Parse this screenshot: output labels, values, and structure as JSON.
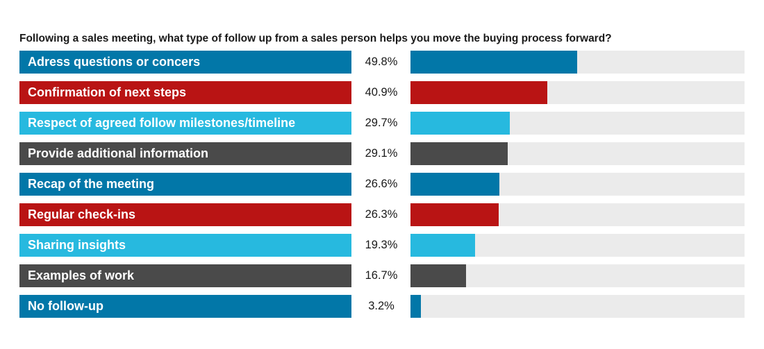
{
  "title": "Following a sales meeting, what type of follow up from a sales person helps you move the buying process forward?",
  "colors": {
    "blue": "#0277a8",
    "red": "#b91414",
    "light_blue": "#27b9df",
    "dark_gray": "#4a4a4a",
    "track": "#ebebeb"
  },
  "chart_data": {
    "type": "bar",
    "orientation": "horizontal",
    "title": "Following a sales meeting, what type of follow up from a sales person helps you move the buying process forward?",
    "xlim": [
      0,
      100
    ],
    "unit": "%",
    "categories": [
      "Adress questions or concers",
      "Confirmation of next steps",
      "Respect of agreed follow milestones/timeline",
      "Provide additional information",
      "Recap of the meeting",
      "Regular check-ins",
      "Sharing insights",
      "Examples of work",
      "No follow-up"
    ],
    "values": [
      49.8,
      40.9,
      29.7,
      29.1,
      26.6,
      26.3,
      19.3,
      16.7,
      3.2
    ],
    "value_labels": [
      "49.8%",
      "40.9%",
      "29.7%",
      "29.1%",
      "26.6%",
      "26.3%",
      "19.3%",
      "16.7%",
      "3.2%"
    ],
    "bar_colors": [
      "#0277a8",
      "#b91414",
      "#27b9df",
      "#4a4a4a",
      "#0277a8",
      "#b91414",
      "#27b9df",
      "#4a4a4a",
      "#0277a8"
    ]
  }
}
